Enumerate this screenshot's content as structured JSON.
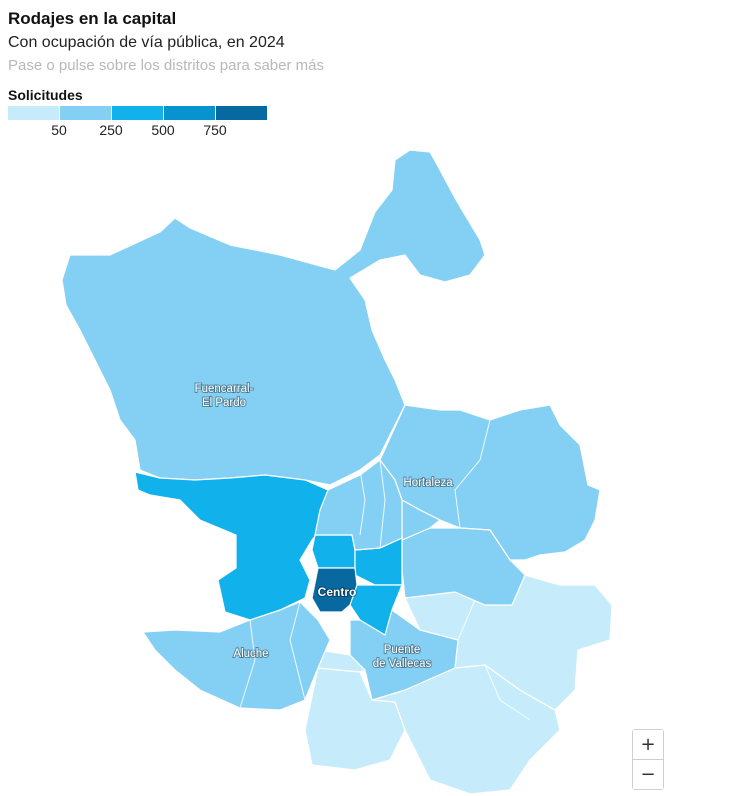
{
  "header": {
    "title": "Rodajes en la capital",
    "subtitle": "Con ocupación de vía pública, en 2024",
    "hint": "Pase o pulse sobre los distritos para saber más"
  },
  "legend": {
    "title": "Solicitudes",
    "ticks": [
      "50",
      "250",
      "500",
      "750"
    ],
    "colors": [
      "#c6ecfb",
      "#84cff4",
      "#11b2ec",
      "#0793ce",
      "#07699f"
    ]
  },
  "map": {
    "labels": {
      "fuencarral_line1": "Fuencarral-",
      "fuencarral_line2": "El Pardo",
      "hortaleza": "Hortaleza",
      "centro": "Centro",
      "aluche": "Aluche",
      "vallecas_line1": "Puente",
      "vallecas_line2": "de Vallecas"
    },
    "district_bins": {
      "fuencarral": "50-250",
      "moncloa": "250-500",
      "centro": "750+",
      "chamberi": "250-500",
      "salamanca": "250-500",
      "retiro": "250-500",
      "arganzuela": "250-500",
      "hortaleza": "50-250",
      "latina": "50-250",
      "puente_vallecas": "50-250",
      "villaverde": "0-50",
      "vicalvaro": "0-50"
    }
  },
  "controls": {
    "zoom_in": "+",
    "zoom_out": "−"
  }
}
